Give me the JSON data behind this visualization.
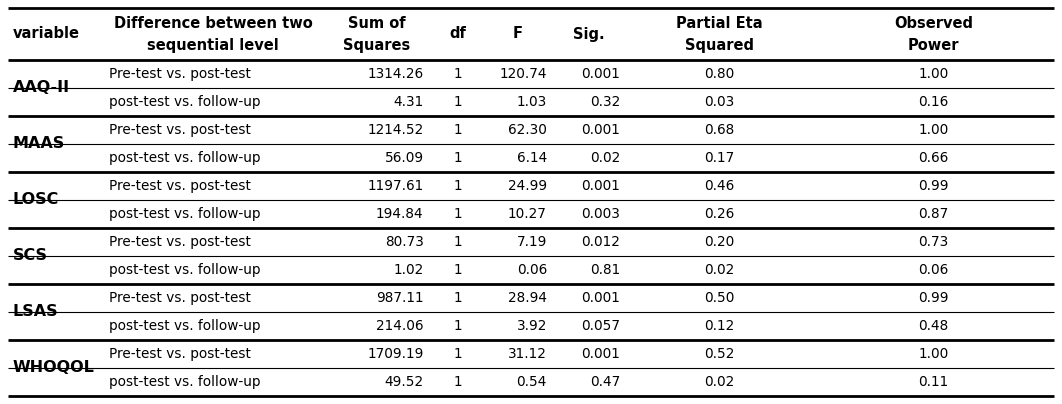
{
  "headers_row1": [
    "variable",
    "Difference between two",
    "Sum of",
    "df",
    "F",
    "Sig.",
    "Partial Eta",
    "Observed"
  ],
  "headers_row2": [
    "",
    "sequential level",
    "Squares",
    "",
    "",
    "",
    "Squared",
    "Power"
  ],
  "rows": [
    {
      "variable": "AAQ-II",
      "diff": "Pre-test vs. post-test",
      "ss": "1314.26",
      "df": "1",
      "F": "120.74",
      "sig": "0.001",
      "eta": "0.80",
      "power": "1.00"
    },
    {
      "variable": "",
      "diff": "post-test vs. follow-up",
      "ss": "4.31",
      "df": "1",
      "F": "1.03",
      "sig": "0.32",
      "eta": "0.03",
      "power": "0.16"
    },
    {
      "variable": "MAAS",
      "diff": "Pre-test vs. post-test",
      "ss": "1214.52",
      "df": "1",
      "F": "62.30",
      "sig": "0.001",
      "eta": "0.68",
      "power": "1.00"
    },
    {
      "variable": "",
      "diff": "post-test vs. follow-up",
      "ss": "56.09",
      "df": "1",
      "F": "6.14",
      "sig": "0.02",
      "eta": "0.17",
      "power": "0.66"
    },
    {
      "variable": "LOSC",
      "diff": "Pre-test vs. post-test",
      "ss": "1197.61",
      "df": "1",
      "F": "24.99",
      "sig": "0.001",
      "eta": "0.46",
      "power": "0.99"
    },
    {
      "variable": "",
      "diff": "post-test vs. follow-up",
      "ss": "194.84",
      "df": "1",
      "F": "10.27",
      "sig": "0.003",
      "eta": "0.26",
      "power": "0.87"
    },
    {
      "variable": "SCS",
      "diff": "Pre-test vs. post-test",
      "ss": "80.73",
      "df": "1",
      "F": "7.19",
      "sig": "0.012",
      "eta": "0.20",
      "power": "0.73"
    },
    {
      "variable": "",
      "diff": "post-test vs. follow-up",
      "ss": "1.02",
      "df": "1",
      "F": "0.06",
      "sig": "0.81",
      "eta": "0.02",
      "power": "0.06"
    },
    {
      "variable": "LSAS",
      "diff": "Pre-test vs. post-test",
      "ss": "987.11",
      "df": "1",
      "F": "28.94",
      "sig": "0.001",
      "eta": "0.50",
      "power": "0.99"
    },
    {
      "variable": "",
      "diff": "post-test vs. follow-up",
      "ss": "214.06",
      "df": "1",
      "F": "3.92",
      "sig": "0.057",
      "eta": "0.12",
      "power": "0.48"
    },
    {
      "variable": "WHOQOL",
      "diff": "Pre-test vs. post-test",
      "ss": "1709.19",
      "df": "1",
      "F": "31.12",
      "sig": "0.001",
      "eta": "0.52",
      "power": "1.00"
    },
    {
      "variable": "",
      "diff": "post-test vs. follow-up",
      "ss": "49.52",
      "df": "1",
      "F": "0.54",
      "sig": "0.47",
      "eta": "0.02",
      "power": "0.11"
    }
  ],
  "bg_color": "#ffffff",
  "text_color": "#000000",
  "header_fontsize": 10.5,
  "body_fontsize": 9.8,
  "var_fontsize": 11.5
}
